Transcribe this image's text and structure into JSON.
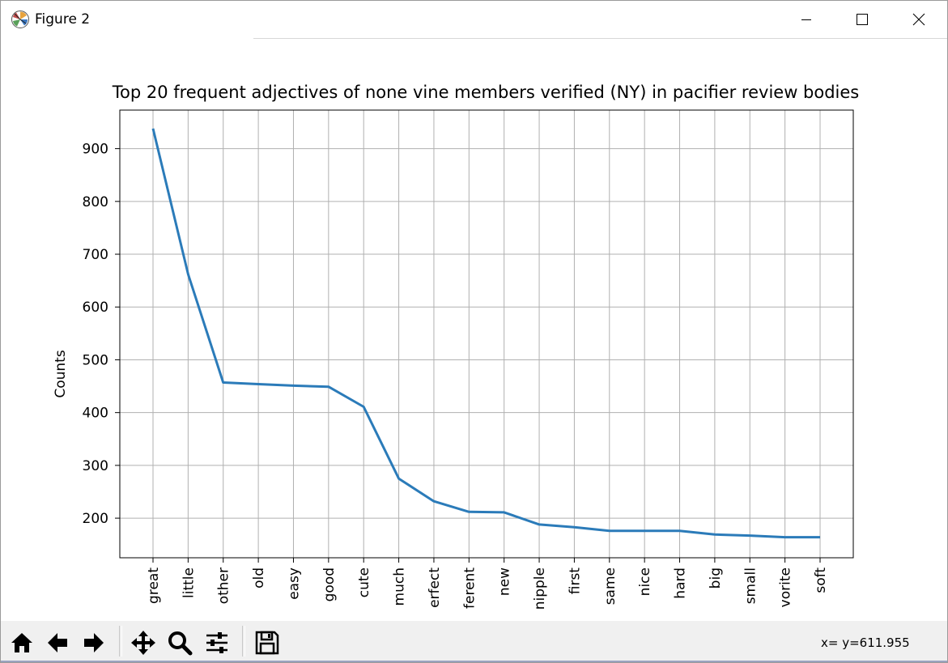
{
  "window": {
    "title": "Figure 2"
  },
  "toolbar": {
    "buttons": [
      {
        "name": "home-icon",
        "tooltip": "Reset original view"
      },
      {
        "name": "back-arrow-icon",
        "tooltip": "Back"
      },
      {
        "name": "forward-arrow-icon",
        "tooltip": "Forward"
      },
      {
        "name": "pan-icon",
        "tooltip": "Pan"
      },
      {
        "name": "zoom-icon",
        "tooltip": "Zoom"
      },
      {
        "name": "configure-subplots-icon",
        "tooltip": "Configure subplots"
      },
      {
        "name": "save-icon",
        "tooltip": "Save"
      }
    ],
    "coordinates": "x= y=611.955"
  },
  "colors": {
    "line": "#2b7bb9",
    "grid": "#b0b0b0",
    "axes": "#000000"
  },
  "chart_data": {
    "type": "line",
    "title": "Top 20 frequent adjectives of none vine members verified (NY) in pacifier review bodies",
    "xlabel": "",
    "ylabel": "Counts",
    "categories": [
      "great",
      "little",
      "other",
      "old",
      "easy",
      "good",
      "cute",
      "much",
      "erfect",
      "ferent",
      "new",
      "nipple",
      "first",
      "same",
      "nice",
      "hard",
      "big",
      "small",
      "vorite",
      "soft"
    ],
    "values": [
      938,
      662,
      457,
      454,
      451,
      449,
      411,
      275,
      232,
      212,
      211,
      188,
      183,
      176,
      176,
      176,
      169,
      167,
      164,
      164
    ],
    "ylim": [
      125,
      973
    ],
    "yticks": [
      200,
      300,
      400,
      500,
      600,
      700,
      800,
      900
    ],
    "grid": true,
    "x_tick_rotation": 90
  }
}
